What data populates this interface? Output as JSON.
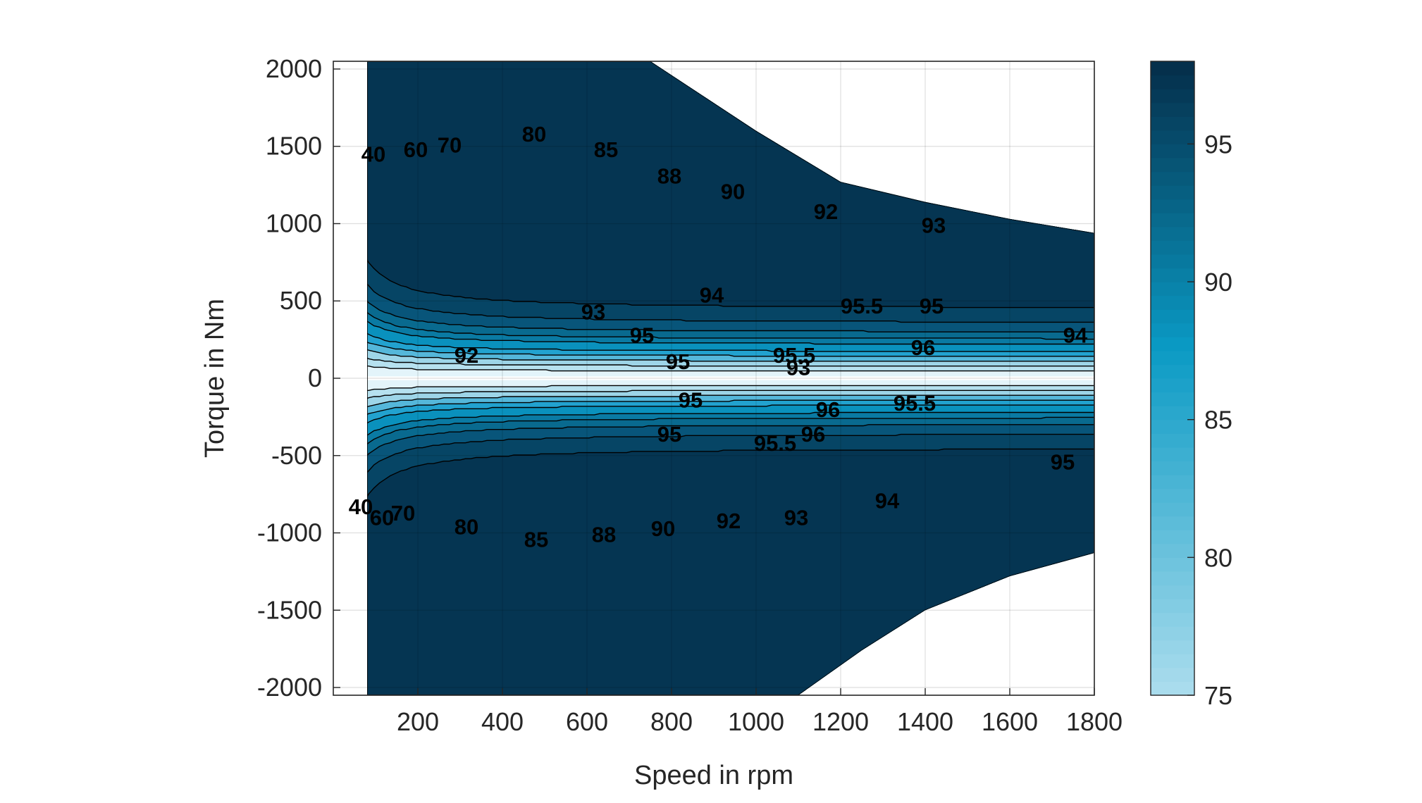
{
  "chart_data": {
    "type": "contourf",
    "xlabel": "Speed in rpm",
    "ylabel": "Torque in Nm",
    "xlim": [
      0,
      1800
    ],
    "ylim": [
      -2050,
      2050
    ],
    "xticks": [
      200,
      400,
      600,
      800,
      1000,
      1200,
      1400,
      1600,
      1800
    ],
    "yticks": [
      -2000,
      -1500,
      -1000,
      -500,
      0,
      500,
      1000,
      1500,
      2000
    ],
    "grid": true,
    "colorbar": {
      "range": [
        75,
        98
      ],
      "ticks": [
        75,
        80,
        85,
        90,
        95
      ],
      "color_low": "#a9dced",
      "color_mid": "#0a9ac4",
      "color_high": "#05304c"
    },
    "fill_bands": [
      {
        "level": 40,
        "color": "#e3f4fa"
      },
      {
        "level": 70,
        "color": "#b6e1ef"
      },
      {
        "level": 80,
        "color": "#9dd5e8"
      },
      {
        "level": 85,
        "color": "#55b7da"
      },
      {
        "level": 88,
        "color": "#22a2cf"
      },
      {
        "level": 90,
        "color": "#0a91bd"
      },
      {
        "level": 92,
        "color": "#0a7aa3"
      },
      {
        "level": 93,
        "color": "#096a8f"
      },
      {
        "level": 94,
        "color": "#08557a"
      },
      {
        "level": 95,
        "color": "#064565"
      },
      {
        "level": 96,
        "color": "#053552"
      }
    ],
    "envelope": {
      "max_torque": [
        [
          80,
          2050
        ],
        [
          750,
          2050
        ],
        [
          1000,
          1600
        ],
        [
          1200,
          1270
        ],
        [
          1400,
          1140
        ],
        [
          1600,
          1030
        ],
        [
          1800,
          940
        ]
      ],
      "min_torque": [
        [
          80,
          -2050
        ],
        [
          1100,
          -2050
        ],
        [
          1250,
          -1760
        ],
        [
          1400,
          -1500
        ],
        [
          1600,
          -1280
        ],
        [
          1800,
          -1130
        ]
      ]
    },
    "contour_labels": [
      {
        "text": "40",
        "x": 95,
        "y": 1450
      },
      {
        "text": "60",
        "x": 195,
        "y": 1480
      },
      {
        "text": "70",
        "x": 275,
        "y": 1510
      },
      {
        "text": "80",
        "x": 475,
        "y": 1580
      },
      {
        "text": "85",
        "x": 645,
        "y": 1480
      },
      {
        "text": "88",
        "x": 795,
        "y": 1310
      },
      {
        "text": "90",
        "x": 945,
        "y": 1210
      },
      {
        "text": "92",
        "x": 1165,
        "y": 1080
      },
      {
        "text": "93",
        "x": 1420,
        "y": 990
      },
      {
        "text": "93",
        "x": 615,
        "y": 430
      },
      {
        "text": "94",
        "x": 895,
        "y": 540
      },
      {
        "text": "95.5",
        "x": 1250,
        "y": 470
      },
      {
        "text": "95",
        "x": 1415,
        "y": 470
      },
      {
        "text": "94",
        "x": 1755,
        "y": 280
      },
      {
        "text": "95",
        "x": 730,
        "y": 280
      },
      {
        "text": "95",
        "x": 815,
        "y": 110
      },
      {
        "text": "95.5",
        "x": 1090,
        "y": 150
      },
      {
        "text": "93",
        "x": 1100,
        "y": 70
      },
      {
        "text": "96",
        "x": 1395,
        "y": 200
      },
      {
        "text": "92",
        "x": 315,
        "y": 150
      },
      {
        "text": "95",
        "x": 845,
        "y": -140
      },
      {
        "text": "96",
        "x": 1170,
        "y": -200
      },
      {
        "text": "95.5",
        "x": 1375,
        "y": -160
      },
      {
        "text": "95",
        "x": 795,
        "y": -360
      },
      {
        "text": "95.5",
        "x": 1045,
        "y": -420
      },
      {
        "text": "96",
        "x": 1135,
        "y": -360
      },
      {
        "text": "95",
        "x": 1725,
        "y": -540
      },
      {
        "text": "94",
        "x": 1310,
        "y": -790
      },
      {
        "text": "93",
        "x": 1095,
        "y": -900
      },
      {
        "text": "92",
        "x": 935,
        "y": -920
      },
      {
        "text": "90",
        "x": 780,
        "y": -970
      },
      {
        "text": "88",
        "x": 640,
        "y": -1010
      },
      {
        "text": "85",
        "x": 480,
        "y": -1040
      },
      {
        "text": "80",
        "x": 315,
        "y": -960
      },
      {
        "text": "70",
        "x": 165,
        "y": -870
      },
      {
        "text": "60",
        "x": 115,
        "y": -900
      },
      {
        "text": "40",
        "x": 65,
        "y": -830
      }
    ]
  }
}
